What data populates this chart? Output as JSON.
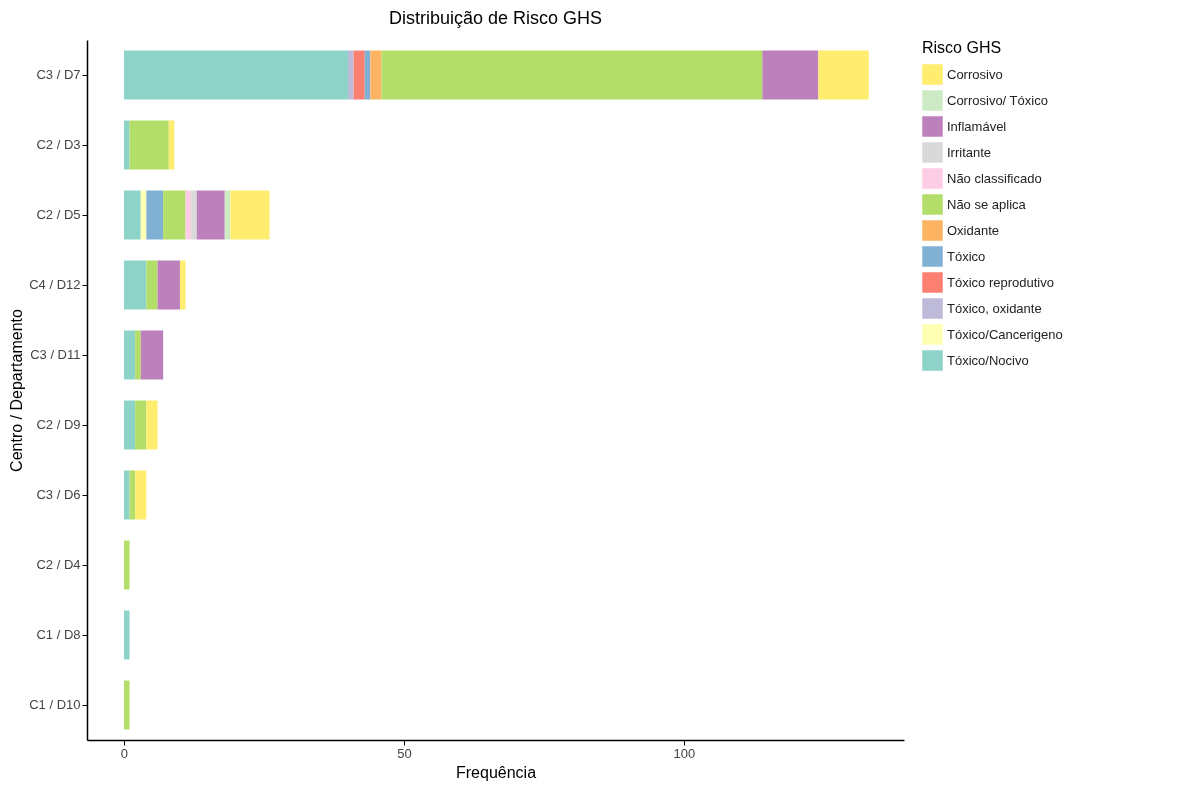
{
  "chart_data": {
    "type": "bar",
    "orientation": "horizontal",
    "stacked": true,
    "title": "Distribuição de Risco GHS",
    "xlabel": "Frequência",
    "ylabel": "Centro / Departamento",
    "legend_title": "Risco GHS",
    "legend": "right",
    "grid": false,
    "categories": [
      "C3 / D7",
      "C2 / D3",
      "C2 / D5",
      "C4 / D12",
      "C3 / D11",
      "C2 / D9",
      "C3 / D6",
      "C2 / D4",
      "C1 / D8",
      "C1 / D10"
    ],
    "xlim": [
      -6.6,
      139.3
    ],
    "xticks": [
      0,
      50,
      100
    ],
    "series": [
      {
        "name": "Tóxico/Nocivo",
        "color": "#8dd3c7",
        "values": [
          40,
          1,
          3,
          4,
          2,
          2,
          1,
          null,
          1,
          null
        ]
      },
      {
        "name": "Tóxico/Cancerigeno",
        "color": "#ffffb3",
        "values": [
          null,
          null,
          1,
          null,
          null,
          null,
          null,
          null,
          null,
          null
        ]
      },
      {
        "name": "Tóxico, oxidante",
        "color": "#bebada",
        "values": [
          1,
          null,
          null,
          null,
          null,
          null,
          null,
          null,
          null,
          null
        ]
      },
      {
        "name": "Tóxico reprodutivo",
        "color": "#fb8072",
        "values": [
          2,
          null,
          null,
          null,
          null,
          null,
          null,
          null,
          null,
          null
        ]
      },
      {
        "name": "Tóxico",
        "color": "#80b1d3",
        "values": [
          1,
          null,
          3,
          null,
          null,
          null,
          null,
          null,
          null,
          null
        ]
      },
      {
        "name": "Oxidante",
        "color": "#fdb462",
        "values": [
          2,
          null,
          null,
          null,
          null,
          null,
          null,
          null,
          null,
          null
        ]
      },
      {
        "name": "Não se aplica",
        "color": "#b3de69",
        "values": [
          68,
          7,
          4,
          2,
          1,
          2,
          1,
          1,
          null,
          1
        ]
      },
      {
        "name": "Não classificado",
        "color": "#fccde5",
        "values": [
          null,
          null,
          1,
          null,
          null,
          null,
          null,
          null,
          null,
          null
        ]
      },
      {
        "name": "Irritante",
        "color": "#d9d9d9",
        "values": [
          null,
          null,
          1,
          null,
          null,
          null,
          null,
          null,
          null,
          null
        ]
      },
      {
        "name": "Inflamável",
        "color": "#bc80bd",
        "values": [
          10,
          null,
          5,
          4,
          4,
          null,
          null,
          null,
          null,
          null
        ]
      },
      {
        "name": "Corrosivo/ Tóxico",
        "color": "#ccebc5",
        "values": [
          null,
          null,
          1,
          null,
          null,
          null,
          null,
          null,
          null,
          null
        ]
      },
      {
        "name": "Corrosivo",
        "color": "#ffed6f",
        "values": [
          9,
          1,
          7,
          1,
          null,
          2,
          2,
          null,
          null,
          null
        ]
      }
    ]
  }
}
